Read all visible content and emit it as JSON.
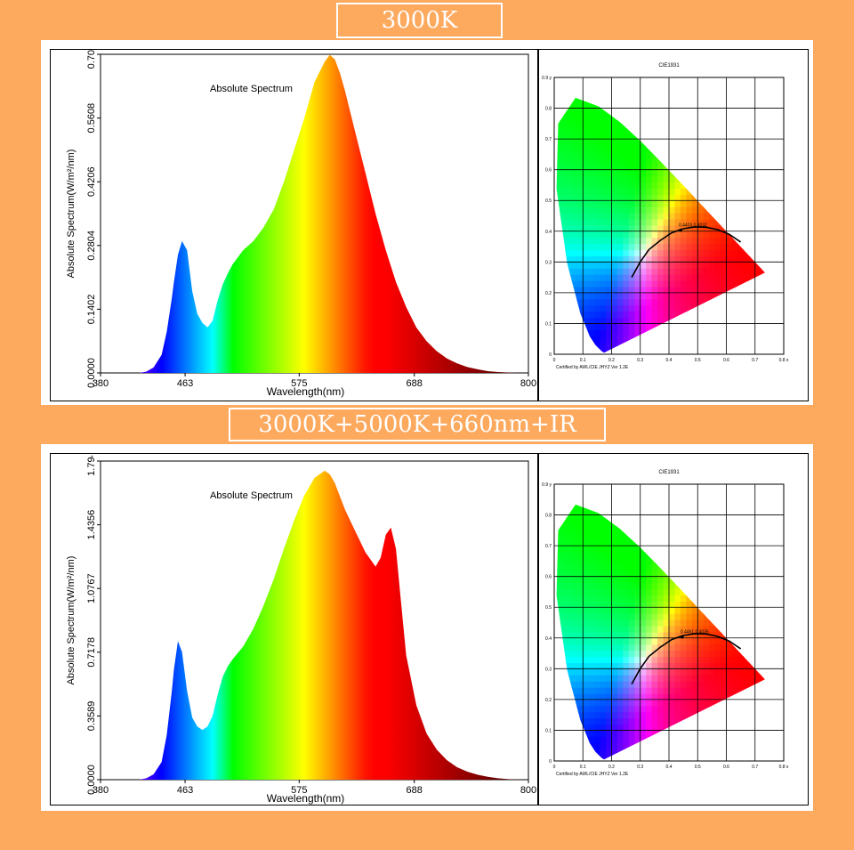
{
  "titles": [
    "3000K",
    "3000K+5000K+660nm+IR"
  ],
  "chart_data": [
    {
      "type": "area",
      "title": "Absolute Spectrum",
      "xlabel": "Wavelength(nm)",
      "ylabel": "Absolute Spectrum(W/m²/nm)",
      "xlim": [
        380,
        800
      ],
      "ylim": [
        0,
        0.7011
      ],
      "x_ticks": [
        "380",
        "463",
        "575",
        "688",
        "800"
      ],
      "y_ticks": [
        "0.0000",
        "0.1402",
        "0.2804",
        "0.4206",
        "0.5608",
        "0.7011"
      ],
      "x": [
        380,
        405,
        418,
        425,
        432,
        440,
        445,
        450,
        452,
        456,
        460,
        465,
        470,
        475,
        480,
        485,
        490,
        495,
        500,
        505,
        510,
        520,
        530,
        540,
        550,
        560,
        570,
        580,
        590,
        600,
        605,
        610,
        615,
        620,
        630,
        640,
        650,
        660,
        670,
        680,
        690,
        700,
        710,
        720,
        730,
        740,
        750,
        760,
        770,
        780,
        790,
        800
      ],
      "values": [
        0,
        0,
        0,
        0.003,
        0.012,
        0.04,
        0.09,
        0.165,
        0.2,
        0.26,
        0.29,
        0.27,
        0.18,
        0.13,
        0.11,
        0.1,
        0.115,
        0.16,
        0.195,
        0.22,
        0.24,
        0.27,
        0.29,
        0.32,
        0.36,
        0.42,
        0.49,
        0.56,
        0.64,
        0.685,
        0.7,
        0.69,
        0.66,
        0.62,
        0.53,
        0.44,
        0.35,
        0.27,
        0.2,
        0.145,
        0.1,
        0.07,
        0.048,
        0.032,
        0.021,
        0.013,
        0.008,
        0.004,
        0.002,
        0.001,
        0,
        0
      ]
    },
    {
      "type": "chromaticity",
      "title": "CIE1931",
      "xlabel": "x",
      "ylabel": "y",
      "xlim": [
        0,
        0.8
      ],
      "ylim": [
        0,
        0.9
      ],
      "x_ticks": [
        "0",
        "0.1",
        "0.2",
        "0.3",
        "0.4",
        "0.5",
        "0.6",
        "0.7",
        "0.8 x"
      ],
      "y_ticks": [
        "0",
        "0.1",
        "0.2",
        "0.3",
        "0.4",
        "0.5",
        "0.6",
        "0.7",
        "0.8",
        "0.9 y"
      ],
      "point_label": "0.4403,0.4032",
      "point": [
        0.4403,
        0.4032
      ],
      "footer": "Certified by AWL/CIE JHYZ Ver 1.2E",
      "planckian": [
        [
          0.27,
          0.25
        ],
        [
          0.3,
          0.3
        ],
        [
          0.33,
          0.34
        ],
        [
          0.37,
          0.37
        ],
        [
          0.41,
          0.395
        ],
        [
          0.45,
          0.408
        ],
        [
          0.49,
          0.414
        ],
        [
          0.53,
          0.413
        ],
        [
          0.57,
          0.405
        ],
        [
          0.61,
          0.39
        ],
        [
          0.65,
          0.365
        ]
      ],
      "locus": [
        [
          0.1741,
          0.005
        ],
        [
          0.1738,
          0.0049
        ],
        [
          0.1666,
          0.0089
        ],
        [
          0.144,
          0.0297
        ],
        [
          0.1241,
          0.0578
        ],
        [
          0.0913,
          0.1327
        ],
        [
          0.0454,
          0.295
        ],
        [
          0.0082,
          0.5384
        ],
        [
          0.0139,
          0.7502
        ],
        [
          0.0743,
          0.8338
        ],
        [
          0.1547,
          0.8059
        ],
        [
          0.2296,
          0.7543
        ],
        [
          0.3016,
          0.6923
        ],
        [
          0.3731,
          0.6245
        ],
        [
          0.4441,
          0.5547
        ],
        [
          0.5125,
          0.4866
        ],
        [
          0.5752,
          0.4242
        ],
        [
          0.627,
          0.3725
        ],
        [
          0.6658,
          0.334
        ],
        [
          0.6915,
          0.3083
        ],
        [
          0.7347,
          0.2653
        ]
      ]
    },
    {
      "type": "area",
      "title": "Absolute Spectrum",
      "xlabel": "Wavelength(nm)",
      "ylabel": "Absolute Spectrum(W/m²/nm)",
      "xlim": [
        380,
        800
      ],
      "ylim": [
        0,
        1.7945
      ],
      "x_ticks": [
        "380",
        "463",
        "575",
        "688",
        "800"
      ],
      "y_ticks": [
        "0.0000",
        "0.3589",
        "0.7178",
        "1.0767",
        "1.4356",
        "1.7945"
      ],
      "x": [
        380,
        405,
        418,
        425,
        432,
        440,
        445,
        450,
        452,
        456,
        460,
        465,
        470,
        475,
        480,
        485,
        490,
        495,
        500,
        505,
        510,
        520,
        530,
        540,
        550,
        560,
        570,
        580,
        590,
        600,
        605,
        610,
        620,
        630,
        640,
        650,
        655,
        660,
        665,
        670,
        675,
        680,
        690,
        700,
        710,
        720,
        730,
        740,
        750,
        760,
        770,
        780,
        790,
        800
      ],
      "values": [
        0,
        0,
        0,
        0.008,
        0.03,
        0.1,
        0.25,
        0.5,
        0.62,
        0.78,
        0.72,
        0.5,
        0.35,
        0.3,
        0.28,
        0.3,
        0.36,
        0.48,
        0.58,
        0.64,
        0.68,
        0.75,
        0.85,
        0.98,
        1.13,
        1.3,
        1.46,
        1.6,
        1.7,
        1.74,
        1.72,
        1.67,
        1.52,
        1.4,
        1.28,
        1.2,
        1.25,
        1.38,
        1.42,
        1.3,
        1.0,
        0.7,
        0.42,
        0.26,
        0.17,
        0.11,
        0.07,
        0.045,
        0.028,
        0.016,
        0.008,
        0.003,
        0.001,
        0
      ]
    },
    {
      "type": "chromaticity",
      "title": "CIE1931",
      "xlabel": "x",
      "ylabel": "y",
      "xlim": [
        0,
        0.8
      ],
      "ylim": [
        0,
        0.9
      ],
      "x_ticks": [
        "0",
        "0.1",
        "0.2",
        "0.3",
        "0.4",
        "0.5",
        "0.6",
        "0.7",
        "0.8 x"
      ],
      "y_ticks": [
        "0",
        "0.1",
        "0.2",
        "0.3",
        "0.4",
        "0.5",
        "0.6",
        "0.7",
        "0.8",
        "0.9 y"
      ],
      "point_label": "0.4461,0.4035",
      "point": [
        0.4461,
        0.4035
      ],
      "footer": "Certified by AWL/CIE JHYZ Ver 1.2E",
      "planckian": [
        [
          0.27,
          0.25
        ],
        [
          0.3,
          0.3
        ],
        [
          0.33,
          0.34
        ],
        [
          0.37,
          0.37
        ],
        [
          0.41,
          0.395
        ],
        [
          0.45,
          0.408
        ],
        [
          0.49,
          0.414
        ],
        [
          0.53,
          0.413
        ],
        [
          0.57,
          0.405
        ],
        [
          0.61,
          0.39
        ],
        [
          0.65,
          0.365
        ]
      ],
      "locus": [
        [
          0.1741,
          0.005
        ],
        [
          0.1738,
          0.0049
        ],
        [
          0.1666,
          0.0089
        ],
        [
          0.144,
          0.0297
        ],
        [
          0.1241,
          0.0578
        ],
        [
          0.0913,
          0.1327
        ],
        [
          0.0454,
          0.295
        ],
        [
          0.0082,
          0.5384
        ],
        [
          0.0139,
          0.7502
        ],
        [
          0.0743,
          0.8338
        ],
        [
          0.1547,
          0.8059
        ],
        [
          0.2296,
          0.7543
        ],
        [
          0.3016,
          0.6923
        ],
        [
          0.3731,
          0.6245
        ],
        [
          0.4441,
          0.5547
        ],
        [
          0.5125,
          0.4866
        ],
        [
          0.5752,
          0.4242
        ],
        [
          0.627,
          0.3725
        ],
        [
          0.6658,
          0.334
        ],
        [
          0.6915,
          0.3083
        ],
        [
          0.7347,
          0.2653
        ]
      ]
    }
  ]
}
